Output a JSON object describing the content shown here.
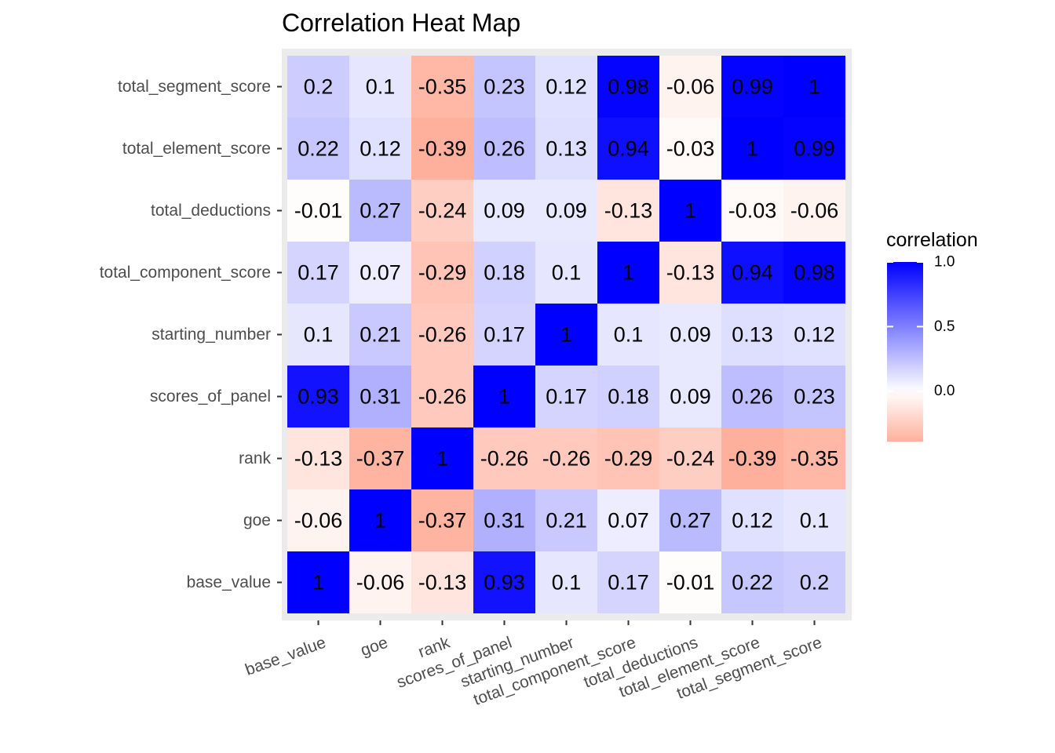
{
  "chart_data": {
    "type": "heatmap",
    "title": "Correlation Heat Map",
    "xlabel": "",
    "ylabel": "",
    "variables": [
      "base_value",
      "goe",
      "rank",
      "scores_of_panel",
      "starting_number",
      "total_component_score",
      "total_deductions",
      "total_element_score",
      "total_segment_score"
    ],
    "matrix": [
      [
        1,
        -0.06,
        -0.13,
        0.93,
        0.1,
        0.17,
        -0.01,
        0.22,
        0.2
      ],
      [
        -0.06,
        1,
        -0.37,
        0.31,
        0.21,
        0.07,
        0.27,
        0.12,
        0.1
      ],
      [
        -0.13,
        -0.37,
        1,
        -0.26,
        -0.26,
        -0.29,
        -0.24,
        -0.39,
        -0.35
      ],
      [
        0.93,
        0.31,
        -0.26,
        1,
        0.17,
        0.18,
        0.09,
        0.26,
        0.23
      ],
      [
        0.1,
        0.21,
        -0.26,
        0.17,
        1,
        0.1,
        0.09,
        0.13,
        0.12
      ],
      [
        0.17,
        0.07,
        -0.29,
        0.18,
        0.1,
        1,
        -0.13,
        0.94,
        0.98
      ],
      [
        -0.01,
        0.27,
        -0.24,
        0.09,
        0.09,
        -0.13,
        1,
        -0.03,
        -0.06
      ],
      [
        0.22,
        0.12,
        -0.39,
        0.26,
        0.13,
        0.94,
        -0.03,
        1,
        0.99
      ],
      [
        0.2,
        0.1,
        -0.35,
        0.23,
        0.12,
        0.98,
        -0.06,
        0.99,
        1
      ]
    ],
    "legend": {
      "title": "correlation",
      "position": "right",
      "ticks": [
        "1.0",
        "0.5",
        "0.0"
      ],
      "tick_values": [
        1.0,
        0.5,
        0.0
      ],
      "range": [
        -0.39,
        1.0
      ]
    },
    "colors": {
      "high": "#0000ff",
      "mid": "#ffffff",
      "low": "#ffb09c",
      "panel_background": "#ebebeb"
    },
    "grid": true
  }
}
